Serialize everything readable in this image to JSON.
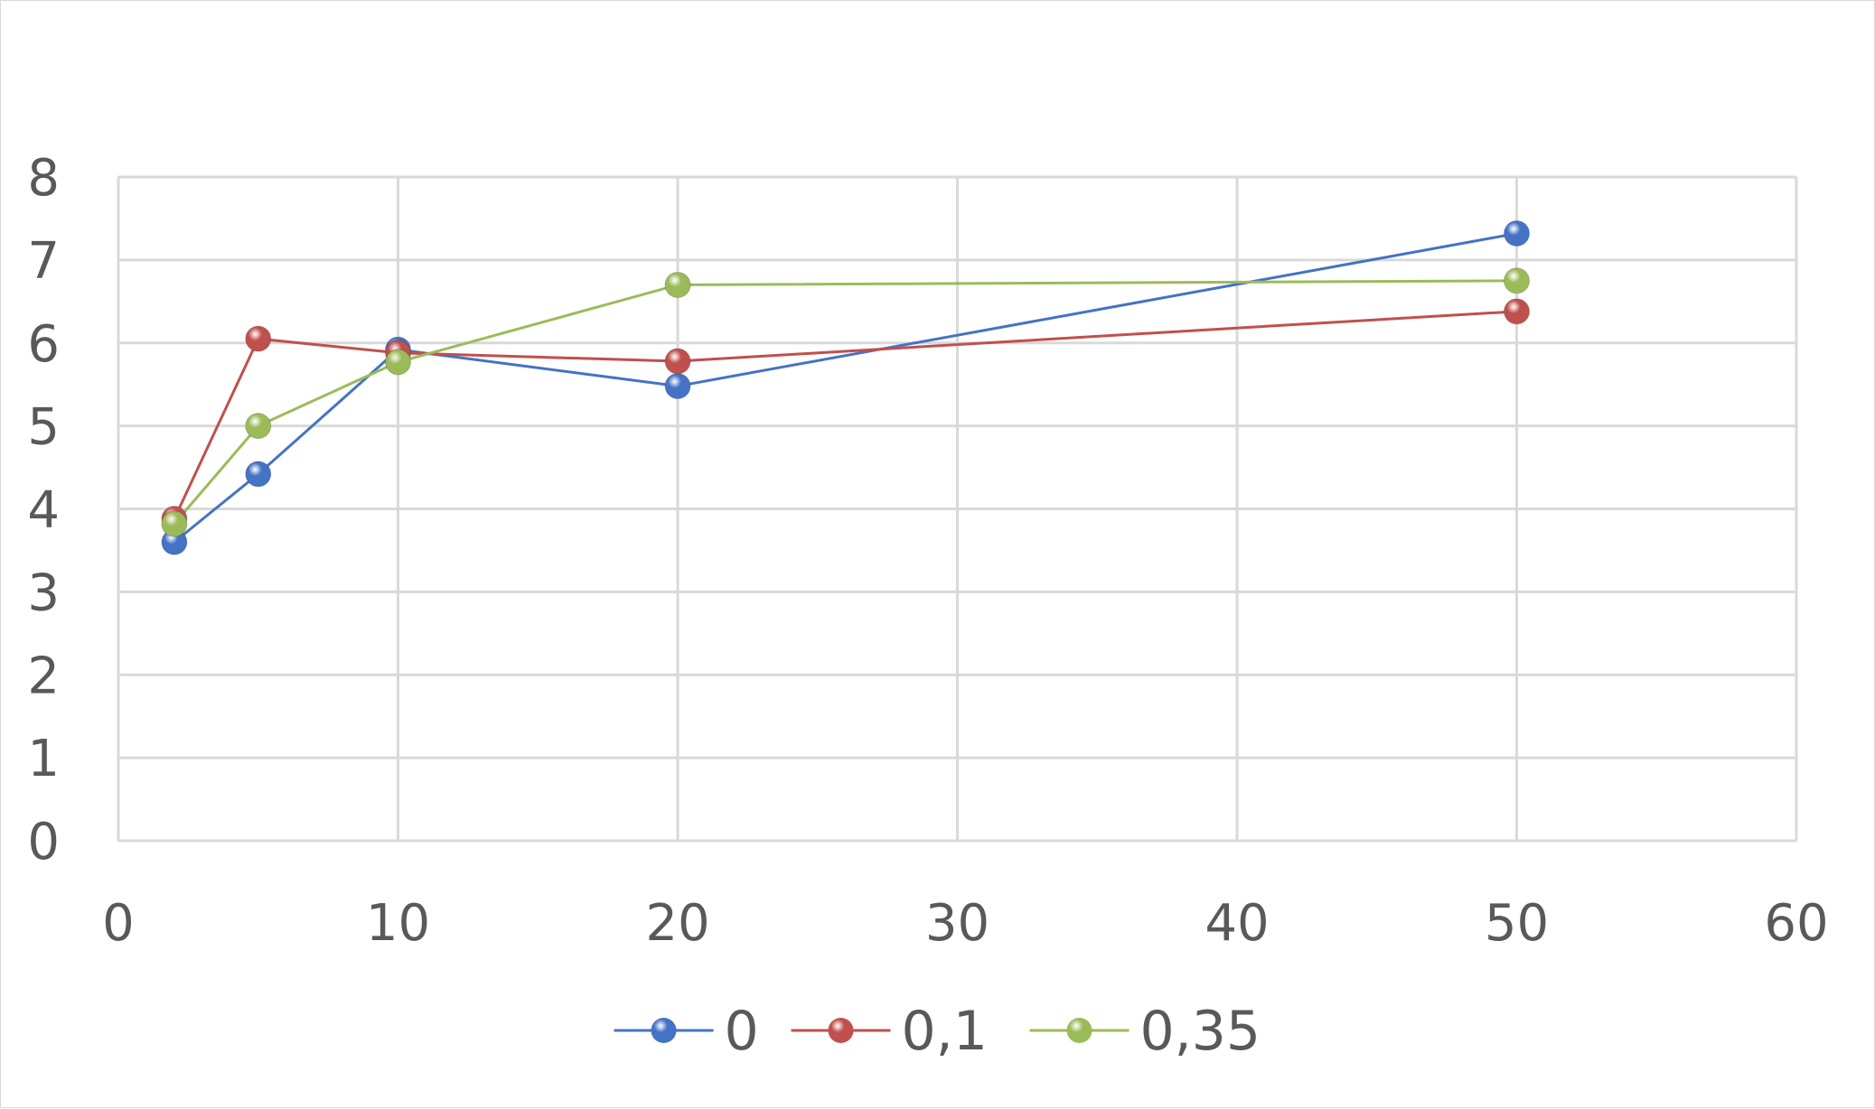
{
  "chart_data": {
    "type": "scatter",
    "title": "",
    "xlabel": "",
    "ylabel": "",
    "xlim": [
      0,
      60
    ],
    "ylim": [
      0,
      8
    ],
    "x_ticks": [
      "0",
      "10",
      "20",
      "30",
      "40",
      "50",
      "60"
    ],
    "y_ticks": [
      "0",
      "1",
      "2",
      "3",
      "4",
      "5",
      "6",
      "7",
      "8"
    ],
    "grid": true,
    "legend_position": "bottom",
    "series": [
      {
        "name": "0",
        "color": "#4472c4",
        "x": [
          2,
          5,
          10,
          20,
          50
        ],
        "y": [
          3.6,
          4.42,
          5.92,
          5.48,
          7.32
        ]
      },
      {
        "name": "0,1",
        "color": "#c0504d",
        "x": [
          2,
          5,
          10,
          20,
          50
        ],
        "y": [
          3.88,
          6.05,
          5.88,
          5.78,
          6.38
        ]
      },
      {
        "name": "0,35",
        "color": "#9bbb59",
        "x": [
          2,
          5,
          10,
          20,
          50
        ],
        "y": [
          3.82,
          5.0,
          5.77,
          6.7,
          6.75
        ]
      }
    ]
  }
}
